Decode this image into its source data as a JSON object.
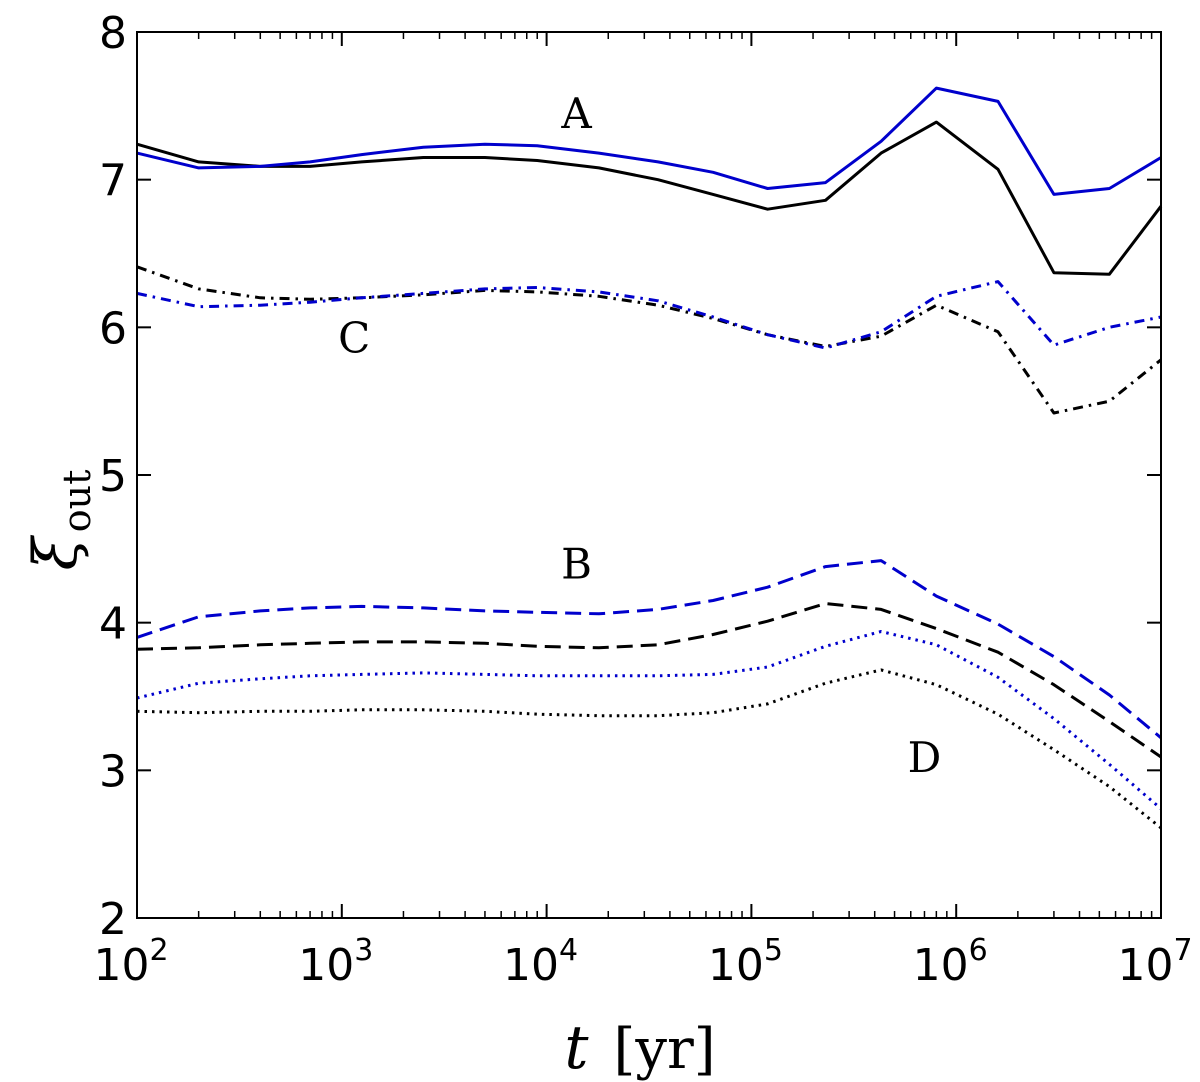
{
  "chart_data": {
    "type": "line",
    "title": "",
    "xlabel": {
      "symbol": "t",
      "unit": "[yr]"
    },
    "ylabel": {
      "symbol": "ξ",
      "subscript": "out"
    },
    "xscale": "log",
    "xlim": [
      100,
      10000000
    ],
    "ylim": [
      2,
      8
    ],
    "x_ticks": [
      {
        "base": "10",
        "exp": "2"
      },
      {
        "base": "10",
        "exp": "3"
      },
      {
        "base": "10",
        "exp": "4"
      },
      {
        "base": "10",
        "exp": "5"
      },
      {
        "base": "10",
        "exp": "6"
      },
      {
        "base": "10",
        "exp": "7"
      }
    ],
    "y_ticks": [
      "2",
      "3",
      "4",
      "5",
      "6",
      "7",
      "8"
    ],
    "grid": false,
    "annotations": [
      {
        "text": "A",
        "x": 14000,
        "y": 7.35
      },
      {
        "text": "C",
        "x": 1150,
        "y": 5.83
      },
      {
        "text": "B",
        "x": 14000,
        "y": 4.3
      },
      {
        "text": "D",
        "x": 700000,
        "y": 2.99
      }
    ],
    "series": [
      {
        "name": "A-black",
        "group": "A",
        "color": "#000000",
        "dash": "solid",
        "x": [
          100,
          200,
          400,
          700,
          1250,
          2500,
          5000,
          9000,
          18000,
          35000,
          65000,
          120000,
          230000,
          430000,
          800000,
          1600000,
          3000000,
          5600000,
          10000000
        ],
        "y": [
          7.24,
          7.12,
          7.09,
          7.09,
          7.12,
          7.15,
          7.15,
          7.13,
          7.08,
          7.0,
          6.9,
          6.8,
          6.86,
          7.18,
          7.39,
          7.07,
          6.37,
          6.36,
          6.82
        ]
      },
      {
        "name": "A-blue",
        "group": "A",
        "color": "#0000cc",
        "dash": "solid",
        "x": [
          100,
          200,
          400,
          700,
          1250,
          2500,
          5000,
          9000,
          18000,
          35000,
          65000,
          120000,
          230000,
          430000,
          800000,
          1600000,
          3000000,
          5600000,
          10000000
        ],
        "y": [
          7.18,
          7.08,
          7.09,
          7.12,
          7.17,
          7.22,
          7.24,
          7.23,
          7.18,
          7.12,
          7.05,
          6.94,
          6.98,
          7.26,
          7.62,
          7.53,
          6.9,
          6.94,
          7.15
        ]
      },
      {
        "name": "C-black",
        "group": "C",
        "color": "#000000",
        "dash": "dashdot",
        "x": [
          100,
          200,
          400,
          700,
          1250,
          2500,
          5000,
          9000,
          18000,
          35000,
          65000,
          120000,
          230000,
          430000,
          800000,
          1600000,
          3000000,
          5600000,
          10000000
        ],
        "y": [
          6.41,
          6.26,
          6.2,
          6.19,
          6.2,
          6.22,
          6.25,
          6.24,
          6.21,
          6.15,
          6.06,
          5.95,
          5.87,
          5.94,
          6.15,
          5.97,
          5.42,
          5.5,
          5.78
        ]
      },
      {
        "name": "C-blue",
        "group": "C",
        "color": "#0000cc",
        "dash": "dashdot",
        "x": [
          100,
          200,
          400,
          700,
          1250,
          2500,
          5000,
          9000,
          18000,
          35000,
          65000,
          120000,
          230000,
          430000,
          800000,
          1600000,
          3000000,
          5600000,
          10000000
        ],
        "y": [
          6.23,
          6.14,
          6.15,
          6.17,
          6.2,
          6.23,
          6.26,
          6.27,
          6.24,
          6.18,
          6.07,
          5.95,
          5.86,
          5.97,
          6.21,
          6.31,
          5.88,
          6.0,
          6.07
        ]
      },
      {
        "name": "B-black",
        "group": "B",
        "color": "#000000",
        "dash": "dashed",
        "x": [
          100,
          200,
          400,
          700,
          1250,
          2500,
          5000,
          9000,
          18000,
          35000,
          65000,
          120000,
          230000,
          430000,
          800000,
          1600000,
          3000000,
          5600000,
          10000000
        ],
        "y": [
          3.82,
          3.83,
          3.85,
          3.86,
          3.87,
          3.87,
          3.86,
          3.84,
          3.83,
          3.85,
          3.92,
          4.01,
          4.13,
          4.09,
          3.96,
          3.8,
          3.58,
          3.33,
          3.09
        ]
      },
      {
        "name": "B-blue",
        "group": "B",
        "color": "#0000cc",
        "dash": "dashed",
        "x": [
          100,
          200,
          400,
          700,
          1250,
          2500,
          5000,
          9000,
          18000,
          35000,
          65000,
          120000,
          230000,
          430000,
          800000,
          1600000,
          3000000,
          5600000,
          10000000
        ],
        "y": [
          3.9,
          4.04,
          4.08,
          4.1,
          4.11,
          4.1,
          4.08,
          4.07,
          4.06,
          4.09,
          4.15,
          4.24,
          4.38,
          4.42,
          4.18,
          3.99,
          3.77,
          3.51,
          3.22
        ]
      },
      {
        "name": "D-black",
        "group": "D",
        "color": "#000000",
        "dash": "dotted",
        "x": [
          100,
          200,
          400,
          700,
          1250,
          2500,
          5000,
          9000,
          18000,
          35000,
          65000,
          120000,
          230000,
          430000,
          800000,
          1600000,
          3000000,
          5600000,
          10000000
        ],
        "y": [
          3.4,
          3.39,
          3.4,
          3.4,
          3.41,
          3.41,
          3.4,
          3.38,
          3.37,
          3.37,
          3.39,
          3.45,
          3.59,
          3.68,
          3.58,
          3.38,
          3.14,
          2.89,
          2.61
        ]
      },
      {
        "name": "D-blue",
        "group": "D",
        "color": "#0000cc",
        "dash": "dotted",
        "x": [
          100,
          200,
          400,
          700,
          1250,
          2500,
          5000,
          9000,
          18000,
          35000,
          65000,
          120000,
          230000,
          430000,
          800000,
          1600000,
          3000000,
          5600000,
          10000000
        ],
        "y": [
          3.49,
          3.59,
          3.62,
          3.64,
          3.65,
          3.66,
          3.65,
          3.64,
          3.64,
          3.64,
          3.65,
          3.7,
          3.84,
          3.94,
          3.85,
          3.63,
          3.35,
          3.04,
          2.74
        ]
      }
    ]
  }
}
